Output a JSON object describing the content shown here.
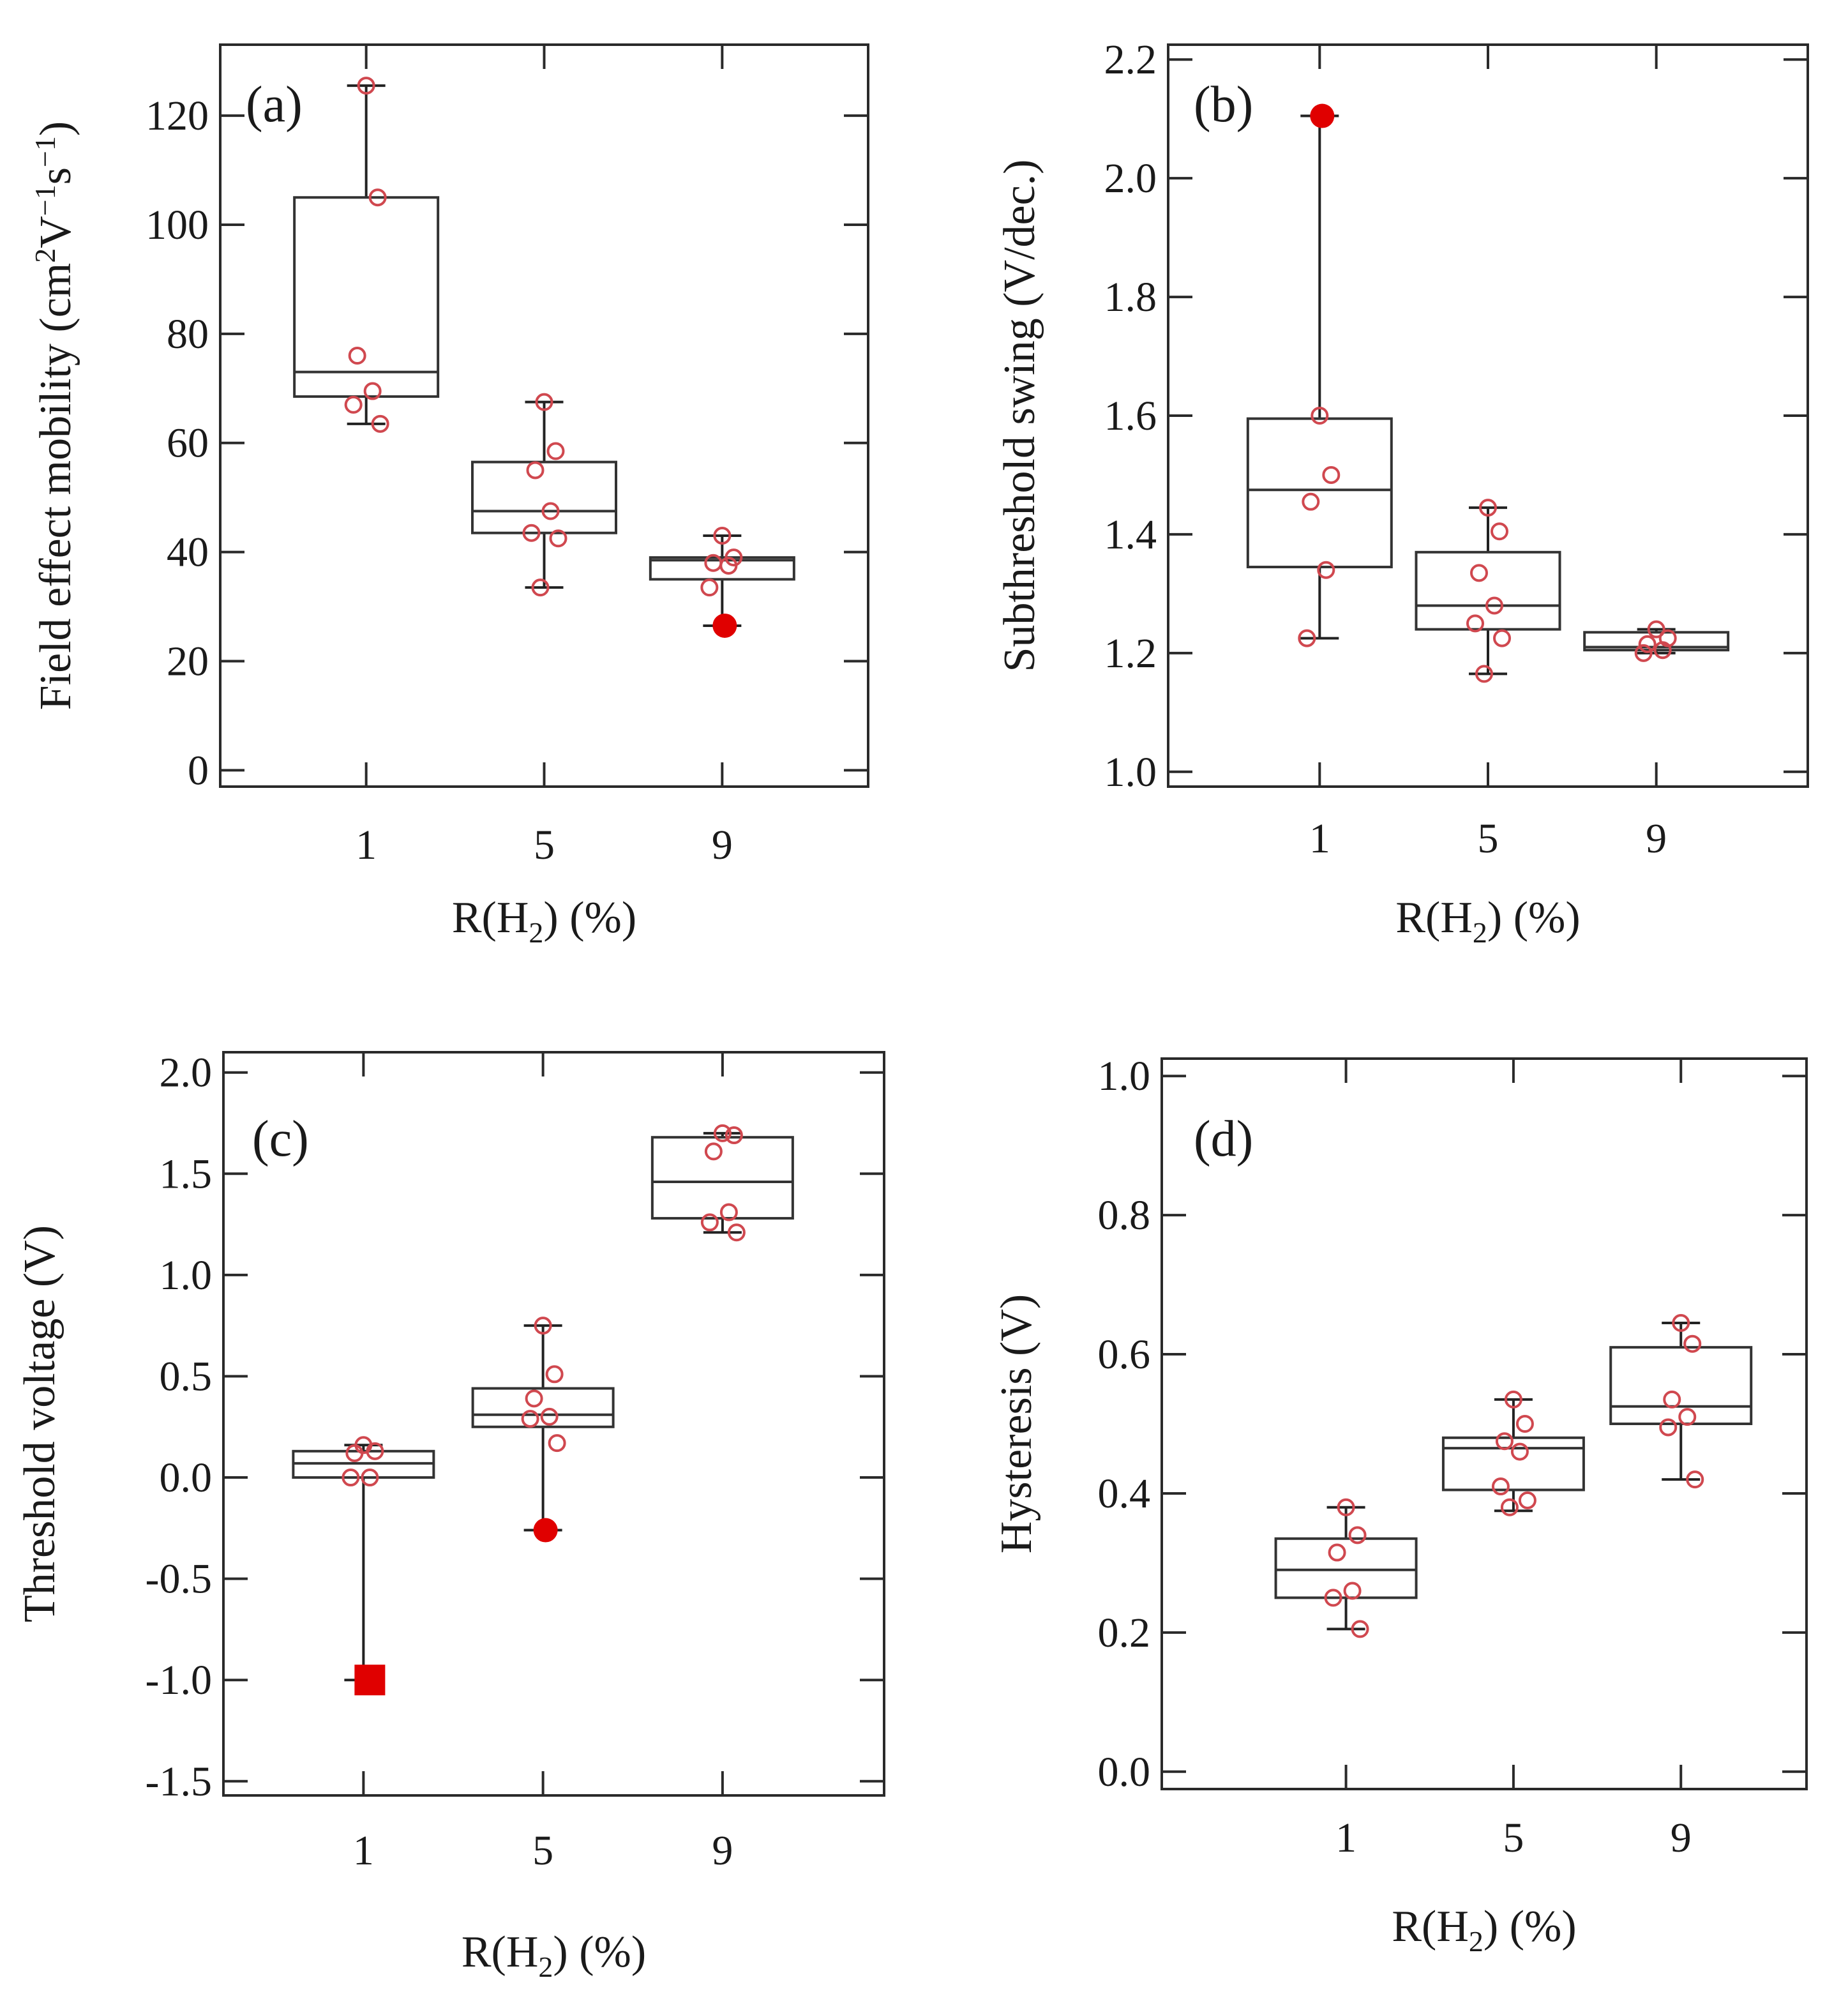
{
  "colors": {
    "point": "#d0484f",
    "outlier": "#e00000",
    "line": "#2a2a2a"
  },
  "chart_data": [
    {
      "type": "box",
      "panel_label": "(a)",
      "categories": [
        "1",
        "5",
        "9"
      ],
      "xlabel": "R(H2) (%)",
      "xlabel_parts": {
        "pre": "R(H",
        "sub": "2",
        "post": ") (%)"
      },
      "ylabel": "Field effect mobility (cm2V-1s-1)",
      "ylabel_parts": [
        {
          "t": "Field effect mobility (cm"
        },
        {
          "t": "2",
          "sup": true
        },
        {
          "t": "V"
        },
        {
          "t": "−1",
          "sup": true
        },
        {
          "t": "s"
        },
        {
          "t": "−1",
          "sup": true
        },
        {
          "t": ")"
        }
      ],
      "ylim": [
        -3,
        133
      ],
      "yticks": [
        0,
        20,
        40,
        60,
        80,
        100,
        120
      ],
      "yticklabels": [
        "0",
        "20",
        "40",
        "60",
        "80",
        "100",
        "120"
      ],
      "xpos": [
        1,
        2,
        3
      ],
      "xlim": [
        0.18,
        3.82
      ],
      "boxes": [
        {
          "category": "1",
          "whisker_low": 63.5,
          "q1": 68.5,
          "median": 73,
          "q3": 105,
          "whisker_high": 125.5,
          "points": [
            125.5,
            105,
            76,
            69.5,
            67,
            63.5
          ],
          "outliers": []
        },
        {
          "category": "5",
          "whisker_low": 33.5,
          "q1": 43.5,
          "median": 47.5,
          "q3": 56.5,
          "whisker_high": 67.5,
          "points": [
            67.5,
            58.5,
            55,
            47.5,
            43.5,
            42.5,
            33.5
          ],
          "outliers": []
        },
        {
          "category": "9",
          "whisker_low": 26.5,
          "q1": 35,
          "median": 38.5,
          "q3": 39,
          "whisker_high": 43,
          "points": [
            43,
            39,
            38,
            37.5,
            33.5
          ],
          "outliers": [
            {
              "value": 26.5,
              "marker": "circle"
            }
          ]
        }
      ]
    },
    {
      "type": "box",
      "panel_label": "(b)",
      "categories": [
        "1",
        "5",
        "9"
      ],
      "xlabel": "R(H2) (%)",
      "xlabel_parts": {
        "pre": "R(H",
        "sub": "2",
        "post": ") (%)"
      },
      "ylabel": "Subthreshold swing (V/dec.)",
      "ylabel_parts": [
        {
          "t": "Subthreshold  swing (V/dec.)"
        }
      ],
      "ylim": [
        0.975,
        2.225
      ],
      "yticks": [
        1.0,
        1.2,
        1.4,
        1.6,
        1.8,
        2.0,
        2.2
      ],
      "yticklabels": [
        "1.0",
        "1.2",
        "1.4",
        "1.6",
        "1.8",
        "2.0",
        "2.2"
      ],
      "xpos": [
        1,
        2,
        3
      ],
      "xlim": [
        0.1,
        3.9
      ],
      "boxes": [
        {
          "category": "1",
          "whisker_low": 1.225,
          "q1": 1.345,
          "median": 1.475,
          "q3": 1.595,
          "whisker_high": 2.105,
          "points": [
            1.6,
            1.5,
            1.455,
            1.34,
            1.225
          ],
          "outliers": [
            {
              "value": 2.105,
              "marker": "circle"
            }
          ]
        },
        {
          "category": "5",
          "whisker_low": 1.165,
          "q1": 1.24,
          "median": 1.28,
          "q3": 1.37,
          "whisker_high": 1.445,
          "points": [
            1.445,
            1.405,
            1.335,
            1.28,
            1.25,
            1.225,
            1.165
          ],
          "outliers": []
        },
        {
          "category": "9",
          "whisker_low": 1.2,
          "q1": 1.205,
          "median": 1.21,
          "q3": 1.235,
          "whisker_high": 1.24,
          "points": [
            1.24,
            1.225,
            1.215,
            1.205,
            1.2
          ],
          "outliers": []
        }
      ]
    },
    {
      "type": "box",
      "panel_label": "(c)",
      "categories": [
        "1",
        "5",
        "9"
      ],
      "xlabel": "R(H2) (%)",
      "xlabel_parts": {
        "pre": "R(H",
        "sub": "2",
        "post": ") (%)"
      },
      "ylabel": "Threshold voltage (V)",
      "ylabel_parts": [
        {
          "t": "Threshold  voltage  (V)"
        }
      ],
      "ylim": [
        -1.57,
        2.1
      ],
      "yticks": [
        -1.5,
        -1.0,
        -0.5,
        0.0,
        0.5,
        1.0,
        1.5,
        2.0
      ],
      "yticklabels": [
        "-1.5",
        "-1.0",
        "-0.5",
        "0.0",
        "0.5",
        "1.0",
        "1.5",
        "2.0"
      ],
      "xpos": [
        1,
        2,
        3
      ],
      "xlim": [
        0.22,
        3.9
      ],
      "boxes": [
        {
          "category": "1",
          "whisker_low": -1.0,
          "q1": 0.0,
          "median": 0.07,
          "q3": 0.13,
          "whisker_high": 0.16,
          "points": [
            0.16,
            0.13,
            0.12,
            0.0,
            0.0
          ],
          "outliers": [
            {
              "value": -1.0,
              "marker": "square"
            }
          ]
        },
        {
          "category": "5",
          "whisker_low": -0.26,
          "q1": 0.25,
          "median": 0.31,
          "q3": 0.44,
          "whisker_high": 0.75,
          "points": [
            0.75,
            0.51,
            0.39,
            0.3,
            0.29,
            0.17
          ],
          "outliers": [
            {
              "value": -0.26,
              "marker": "circle"
            }
          ]
        },
        {
          "category": "9",
          "whisker_low": 1.21,
          "q1": 1.28,
          "median": 1.46,
          "q3": 1.68,
          "whisker_high": 1.7,
          "points": [
            1.7,
            1.69,
            1.61,
            1.31,
            1.26,
            1.21
          ],
          "outliers": []
        }
      ]
    },
    {
      "type": "box",
      "panel_label": "(d)",
      "categories": [
        "1",
        "5",
        "9"
      ],
      "xlabel": "R(H2) (%)",
      "xlabel_parts": {
        "pre": "R(H",
        "sub": "2",
        "post": ") (%)"
      },
      "ylabel": "Hysteresis (V)",
      "ylabel_parts": [
        {
          "t": "Hysteresis  (V)"
        }
      ],
      "ylim": [
        -0.025,
        1.025
      ],
      "yticks": [
        0.0,
        0.2,
        0.4,
        0.6,
        0.8,
        1.0
      ],
      "yticklabels": [
        "0.0",
        "0.2",
        "0.4",
        "0.6",
        "0.8",
        "1.0"
      ],
      "xpos": [
        1,
        2,
        3
      ],
      "xlim": [
        -0.1,
        3.75
      ],
      "boxes": [
        {
          "category": "1",
          "whisker_low": 0.205,
          "q1": 0.25,
          "median": 0.29,
          "q3": 0.335,
          "whisker_high": 0.38,
          "points": [
            0.38,
            0.34,
            0.315,
            0.26,
            0.25,
            0.205
          ],
          "outliers": []
        },
        {
          "category": "5",
          "whisker_low": 0.375,
          "q1": 0.405,
          "median": 0.465,
          "q3": 0.48,
          "whisker_high": 0.535,
          "points": [
            0.535,
            0.5,
            0.475,
            0.46,
            0.41,
            0.39,
            0.38
          ],
          "outliers": []
        },
        {
          "category": "9",
          "whisker_low": 0.42,
          "q1": 0.5,
          "median": 0.525,
          "q3": 0.61,
          "whisker_high": 0.645,
          "points": [
            0.645,
            0.615,
            0.535,
            0.51,
            0.495,
            0.42
          ],
          "outliers": []
        }
      ]
    }
  ]
}
